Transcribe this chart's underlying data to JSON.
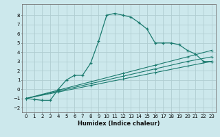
{
  "title": "",
  "xlabel": "Humidex (Indice chaleur)",
  "bg_color": "#cce8ec",
  "line_color": "#1a7a6e",
  "grid_color": "#b0cdd1",
  "xlim": [
    -0.5,
    23.5
  ],
  "ylim": [
    -2.5,
    9.2
  ],
  "yticks": [
    -2,
    -1,
    0,
    1,
    2,
    3,
    4,
    5,
    6,
    7,
    8
  ],
  "xticks": [
    0,
    1,
    2,
    3,
    4,
    5,
    6,
    7,
    8,
    9,
    10,
    11,
    12,
    13,
    14,
    15,
    16,
    17,
    18,
    19,
    20,
    21,
    22,
    23
  ],
  "line1_x": [
    0,
    1,
    2,
    3,
    4,
    5,
    6,
    7,
    8,
    9,
    10,
    11,
    12,
    13,
    14,
    15,
    16,
    17,
    18,
    19,
    20,
    21,
    22,
    23
  ],
  "line1_y": [
    -1.0,
    -1.1,
    -1.2,
    -1.2,
    0.0,
    1.0,
    1.5,
    1.5,
    2.8,
    5.2,
    8.0,
    8.2,
    8.0,
    7.8,
    7.2,
    6.5,
    5.0,
    5.0,
    5.0,
    4.8,
    4.2,
    3.8,
    3.0,
    3.0
  ],
  "line2_x": [
    0,
    4,
    8,
    12,
    16,
    20,
    23
  ],
  "line2_y": [
    -1.0,
    -0.3,
    0.4,
    1.1,
    1.8,
    2.5,
    3.0
  ],
  "line3_x": [
    0,
    4,
    8,
    12,
    16,
    20,
    23
  ],
  "line3_y": [
    -1.0,
    -0.2,
    0.6,
    1.4,
    2.2,
    3.0,
    3.5
  ],
  "line4_x": [
    0,
    4,
    8,
    12,
    16,
    20,
    23
  ],
  "line4_y": [
    -1.0,
    -0.1,
    0.8,
    1.7,
    2.6,
    3.5,
    4.2
  ]
}
